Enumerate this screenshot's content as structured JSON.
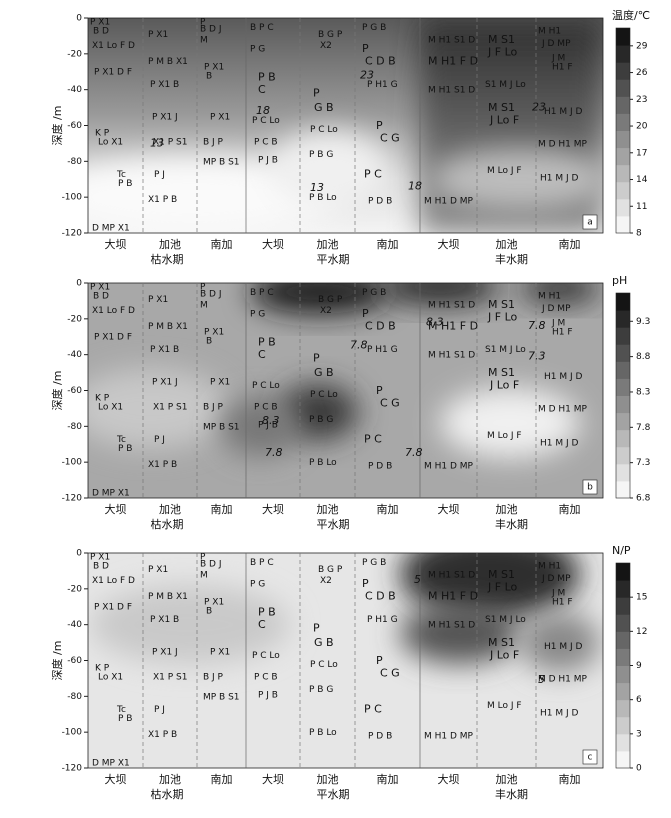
{
  "y_axis_label": "深度 /m",
  "ylim": [
    -120,
    0
  ],
  "yticks": [
    0,
    -20,
    -40,
    -60,
    -80,
    -100,
    -120
  ],
  "sites": [
    "大坝",
    "加池",
    "南加",
    "大坝",
    "加池",
    "南加",
    "大坝",
    "加池",
    "南加"
  ],
  "seasons": [
    "枯水期",
    "平水期",
    "丰水期"
  ],
  "site_labels": [
    "P X1",
    "B D",
    "X1 Lo F D",
    "P X1 D F",
    "K P",
    "Lo X1",
    "Tc",
    "P B",
    "D MP X1",
    "P X1",
    "P M B X1",
    "P X1 B",
    "P X1 J",
    "X1 P S1",
    "P J",
    "X1 P B",
    "P",
    "B D J",
    "M",
    "P X1",
    "B",
    "P X1",
    "B J P",
    "MP B S1",
    "B P C",
    "P G",
    "P B",
    "C",
    "P C Lo",
    "P C B",
    "P J B",
    "B G P",
    "X2",
    "P",
    "G B",
    "P C Lo",
    "P B G",
    "P B Lo",
    "P G B",
    "P",
    "C D B",
    "P H1 G",
    "P",
    "C G",
    "P C",
    "P D B",
    "M H1 S1 D",
    "M H1 F D",
    "M H1 S1 D",
    "M H1 D MP",
    "M S1",
    "J F Lo",
    "S1 M J Lo",
    "M S1",
    "J Lo F",
    "M Lo J F",
    "M H1",
    "J D MP",
    "J M",
    "H1 F",
    "H1 M J D",
    "M D H1 MP",
    "H1 M J D"
  ],
  "panels": [
    {
      "letter": "a",
      "colorbar_title": "温度/℃",
      "clim": [
        8,
        31
      ],
      "cticks": [
        29,
        26,
        23,
        20,
        17,
        14,
        11,
        8
      ],
      "contour_labels": [
        13,
        18,
        23,
        18,
        23,
        13
      ]
    },
    {
      "letter": "b",
      "colorbar_title": "pH",
      "clim": [
        6.8,
        9.7
      ],
      "cticks": [
        9.3,
        8.8,
        8.3,
        7.8,
        7.3,
        6.8
      ],
      "contour_labels": [
        7.8,
        8.3,
        7.8,
        7.3,
        8.3,
        7.8,
        7.8
      ]
    },
    {
      "letter": "c",
      "colorbar_title": "N/P",
      "clim": [
        0,
        18
      ],
      "cticks": [
        15,
        12,
        9,
        6,
        3,
        0
      ],
      "contour_labels": [
        5,
        5
      ]
    }
  ]
}
